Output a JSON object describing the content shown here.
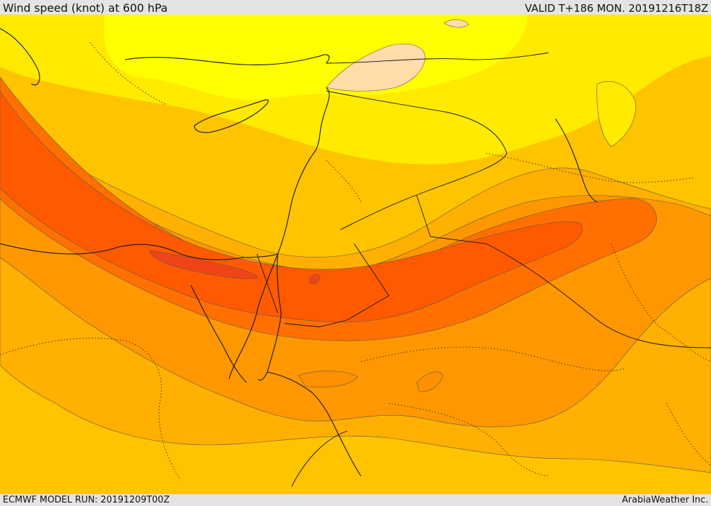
{
  "header": {
    "title": "Wind speed (knot) at 600 hPa",
    "valid": "VALID T+186 MON. 20191216T18Z"
  },
  "footer": {
    "model_run": "ECMWF MODEL RUN: 20191209T00Z",
    "credit": "ArabiaWeather Inc."
  },
  "map": {
    "variable": "wind-speed",
    "pressure_level": "600 hPa",
    "palette": [
      "#ffd8a8",
      "#ffff00",
      "#ffe000",
      "#ffc000",
      "#ff9a00",
      "#ff7a00",
      "#ff5a00",
      "#f04010"
    ],
    "features": [
      "jet-stream-band",
      "coastlines",
      "country-borders",
      "province-borders"
    ]
  }
}
